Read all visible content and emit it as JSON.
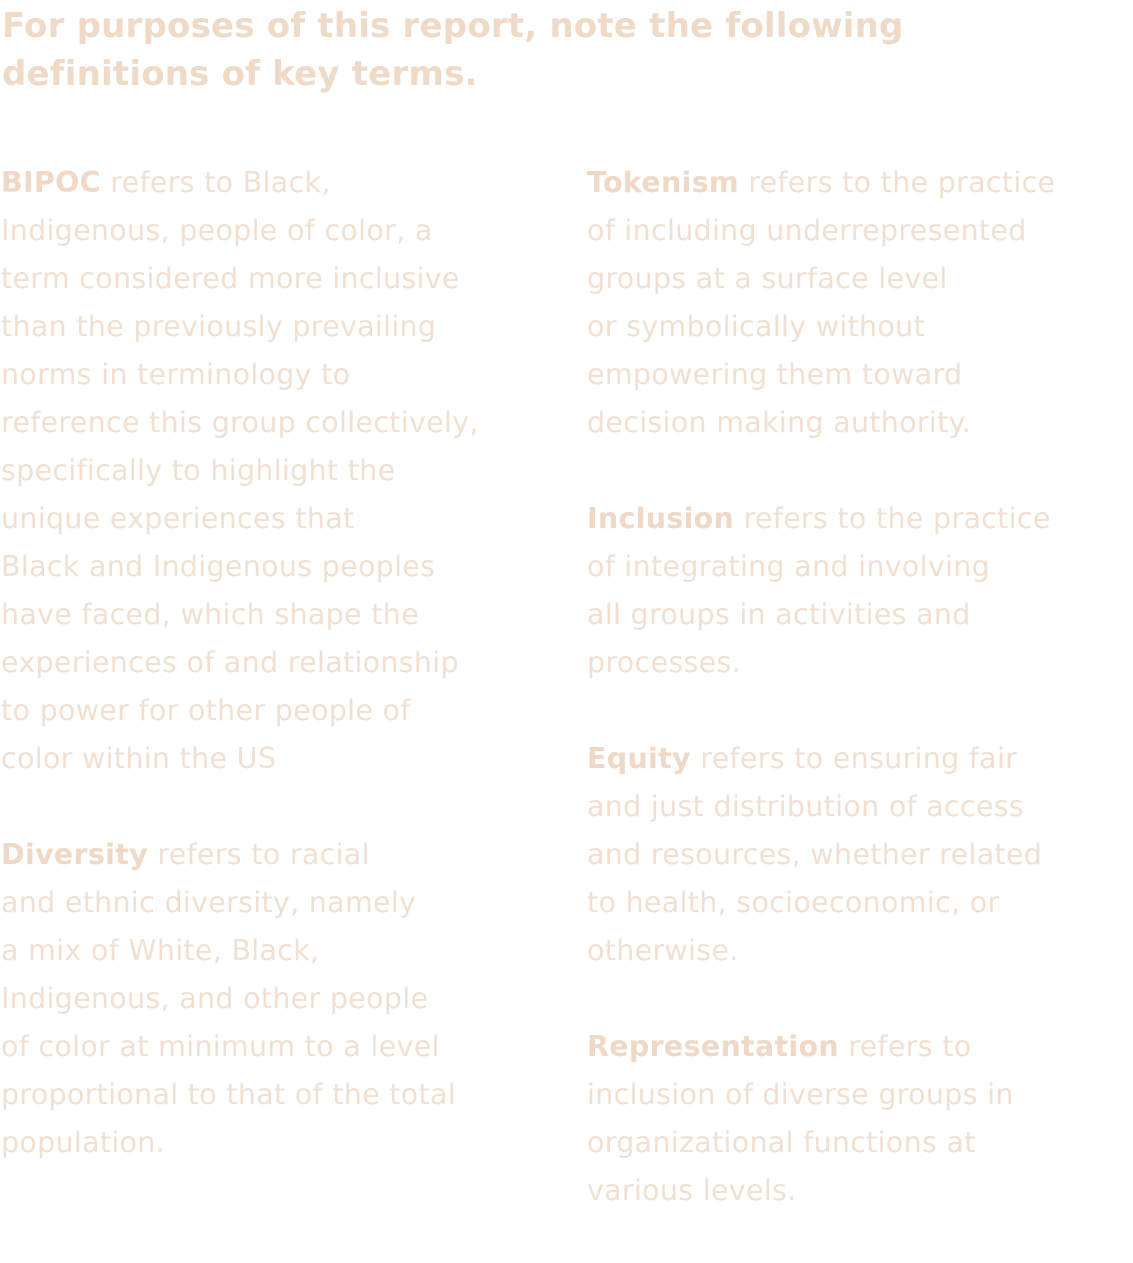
{
  "heading": {
    "lines": [
      "For purposes of this report, note the following",
      "definitions of key terms."
    ]
  },
  "left_column": [
    {
      "term": "BIPOC",
      "lines": [
        " refers to Black,",
        "Indigenous, people of color, a",
        "term considered more inclusive",
        "than the previously prevailing",
        "norms in terminology to",
        "reference this group collectively,",
        "specifically to highlight the",
        "unique experiences that",
        "Black and Indigenous peoples",
        "have faced, which shape the",
        "experiences of and relationship",
        "to power for other people of",
        "color within the US"
      ]
    },
    {
      "term": "Diversity",
      "lines": [
        " refers to racial",
        "and ethnic diversity, namely",
        "a mix of White, Black,",
        "Indigenous, and other people",
        "of color at minimum to a level",
        "proportional to that of the total",
        "population."
      ]
    }
  ],
  "right_column": [
    {
      "term": "Tokenism",
      "lines": [
        " refers to the practice",
        "of including underrepresented",
        "groups at a surface level",
        "or symbolically without",
        "empowering them toward",
        "decision making authority."
      ]
    },
    {
      "term": "Inclusion",
      "lines": [
        " refers to the practice",
        "of integrating and involving",
        "all groups in activities and",
        "processes."
      ]
    },
    {
      "term": "Equity",
      "lines": [
        " refers to ensuring fair",
        "and just distribution of access",
        "and resources, whether related",
        "to health, socioeconomic, or",
        "otherwise."
      ]
    },
    {
      "term": "Representation",
      "lines": [
        " refers to",
        "inclusion of diverse groups in",
        "organizational functions at",
        "various levels."
      ]
    }
  ],
  "colors": {
    "heading": "#efd9c7",
    "body_text": "#f1e0d2",
    "term_name": "#efd8c6"
  }
}
